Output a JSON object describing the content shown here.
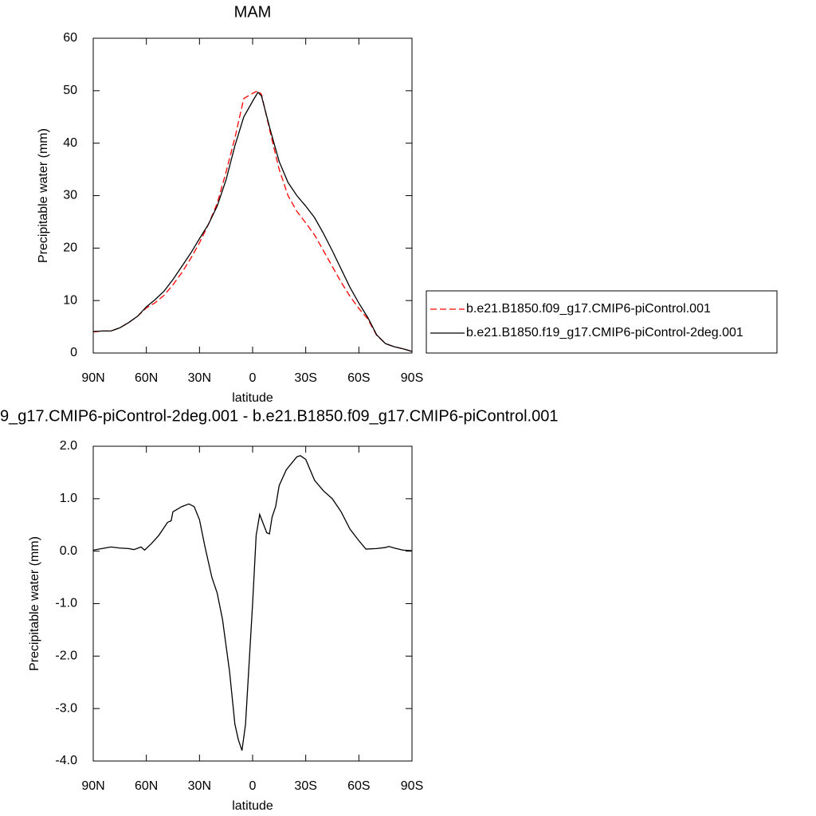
{
  "chart_data": [
    {
      "type": "line",
      "title": "MAM",
      "xlabel": "latitude",
      "ylabel": "Precipitable water (mm)",
      "x": [
        90,
        85,
        80,
        75,
        70,
        65,
        60,
        55,
        50,
        45,
        40,
        35,
        30,
        25,
        20,
        15,
        10,
        5,
        0,
        -3,
        -5,
        -10,
        -15,
        -20,
        -25,
        -30,
        -35,
        -40,
        -45,
        -50,
        -55,
        -60,
        -65,
        -70,
        -75,
        -80,
        -85,
        -90
      ],
      "series": [
        {
          "name": "b.e21.B1850.f09_g17.CMIP6-piControl.001",
          "color": "#ff0000",
          "dashed": true,
          "values": [
            4.0,
            4.2,
            4.2,
            4.8,
            5.8,
            7.0,
            8.6,
            9.6,
            11.0,
            13.0,
            15.3,
            18.0,
            21.0,
            24.5,
            28.5,
            34.5,
            41.0,
            48.5,
            49.5,
            50.0,
            49.3,
            42.0,
            35.0,
            30.0,
            27.0,
            24.8,
            22.5,
            19.5,
            16.5,
            13.5,
            10.8,
            8.5,
            6.5,
            3.4,
            1.8,
            1.2,
            0.8,
            0.3
          ]
        },
        {
          "name": "b.e21.B1850.f19_g17.CMIP6-piControl-2deg.001",
          "color": "#000000",
          "dashed": false,
          "values": [
            4.1,
            4.2,
            4.2,
            4.8,
            5.8,
            7.0,
            8.8,
            10.2,
            11.8,
            14.0,
            16.5,
            19.0,
            21.8,
            24.5,
            28.0,
            33.0,
            39.5,
            45.0,
            48.0,
            49.7,
            49.0,
            42.5,
            36.5,
            32.5,
            30.0,
            28.0,
            25.8,
            22.8,
            19.5,
            16.0,
            12.5,
            9.5,
            6.8,
            3.5,
            1.8,
            1.2,
            0.8,
            0.3
          ]
        }
      ],
      "xlim": [
        90,
        -90
      ],
      "xticks": [
        {
          "value": 90,
          "label": "90N"
        },
        {
          "value": 60,
          "label": "60N"
        },
        {
          "value": 30,
          "label": "30N"
        },
        0,
        {
          "value": -30,
          "label": "30S"
        },
        {
          "value": -60,
          "label": "60S"
        },
        {
          "value": -90,
          "label": "90S"
        }
      ],
      "ylim": [
        0,
        60
      ],
      "yticks": [
        0,
        10,
        20,
        30,
        40,
        50,
        60
      ],
      "legend": "right"
    },
    {
      "type": "line",
      "title": "9_g17.CMIP6-piControl-2deg.001 - b.e21.B1850.f09_g17.CMIP6-piControl.001",
      "xlabel": "latitude",
      "ylabel": "Precipitable water (mm)",
      "x": [
        90,
        85,
        80,
        75,
        70,
        67,
        63,
        61,
        57,
        53,
        48,
        46,
        45,
        40,
        36,
        33,
        30,
        27,
        23,
        20,
        17,
        13,
        10,
        8,
        6,
        4,
        0,
        -2,
        -4,
        -8,
        -9.5,
        -11,
        -13,
        -15,
        -19,
        -25,
        -27,
        -30,
        -35,
        -40,
        -45,
        -50,
        -55,
        -60,
        -64,
        -70,
        -75,
        -77,
        -80,
        -85,
        -90
      ],
      "series": [
        {
          "color": "#000000",
          "dashed": false,
          "values": [
            0.02,
            0.05,
            0.08,
            0.06,
            0.05,
            0.03,
            0.08,
            0.02,
            0.15,
            0.3,
            0.55,
            0.58,
            0.75,
            0.85,
            0.9,
            0.85,
            0.6,
            0.1,
            -0.5,
            -0.8,
            -1.3,
            -2.3,
            -3.3,
            -3.6,
            -3.8,
            -3.3,
            -1.0,
            0.3,
            0.7,
            0.35,
            0.33,
            0.65,
            0.85,
            1.25,
            1.55,
            1.8,
            1.82,
            1.75,
            1.35,
            1.15,
            1.0,
            0.75,
            0.42,
            0.2,
            0.04,
            0.05,
            0.07,
            0.09,
            0.06,
            0.02,
            0.01
          ]
        }
      ],
      "xlim": [
        90,
        -90
      ],
      "xticks": [
        {
          "value": 90,
          "label": "90N"
        },
        {
          "value": 60,
          "label": "60N"
        },
        {
          "value": 30,
          "label": "30N"
        },
        0,
        {
          "value": -30,
          "label": "30S"
        },
        {
          "value": -60,
          "label": "60S"
        },
        {
          "value": -90,
          "label": "90S"
        }
      ],
      "ylim": [
        -4,
        2
      ],
      "yticks": [
        {
          "value": -4,
          "label": "-4.0"
        },
        {
          "value": -3,
          "label": "-3.0"
        },
        {
          "value": -2,
          "label": "-2.0"
        },
        {
          "value": -1,
          "label": "-1.0"
        },
        {
          "value": 0,
          "label": "0.0"
        },
        {
          "value": 1,
          "label": "1.0"
        },
        {
          "value": 2,
          "label": "2.0"
        }
      ]
    }
  ]
}
